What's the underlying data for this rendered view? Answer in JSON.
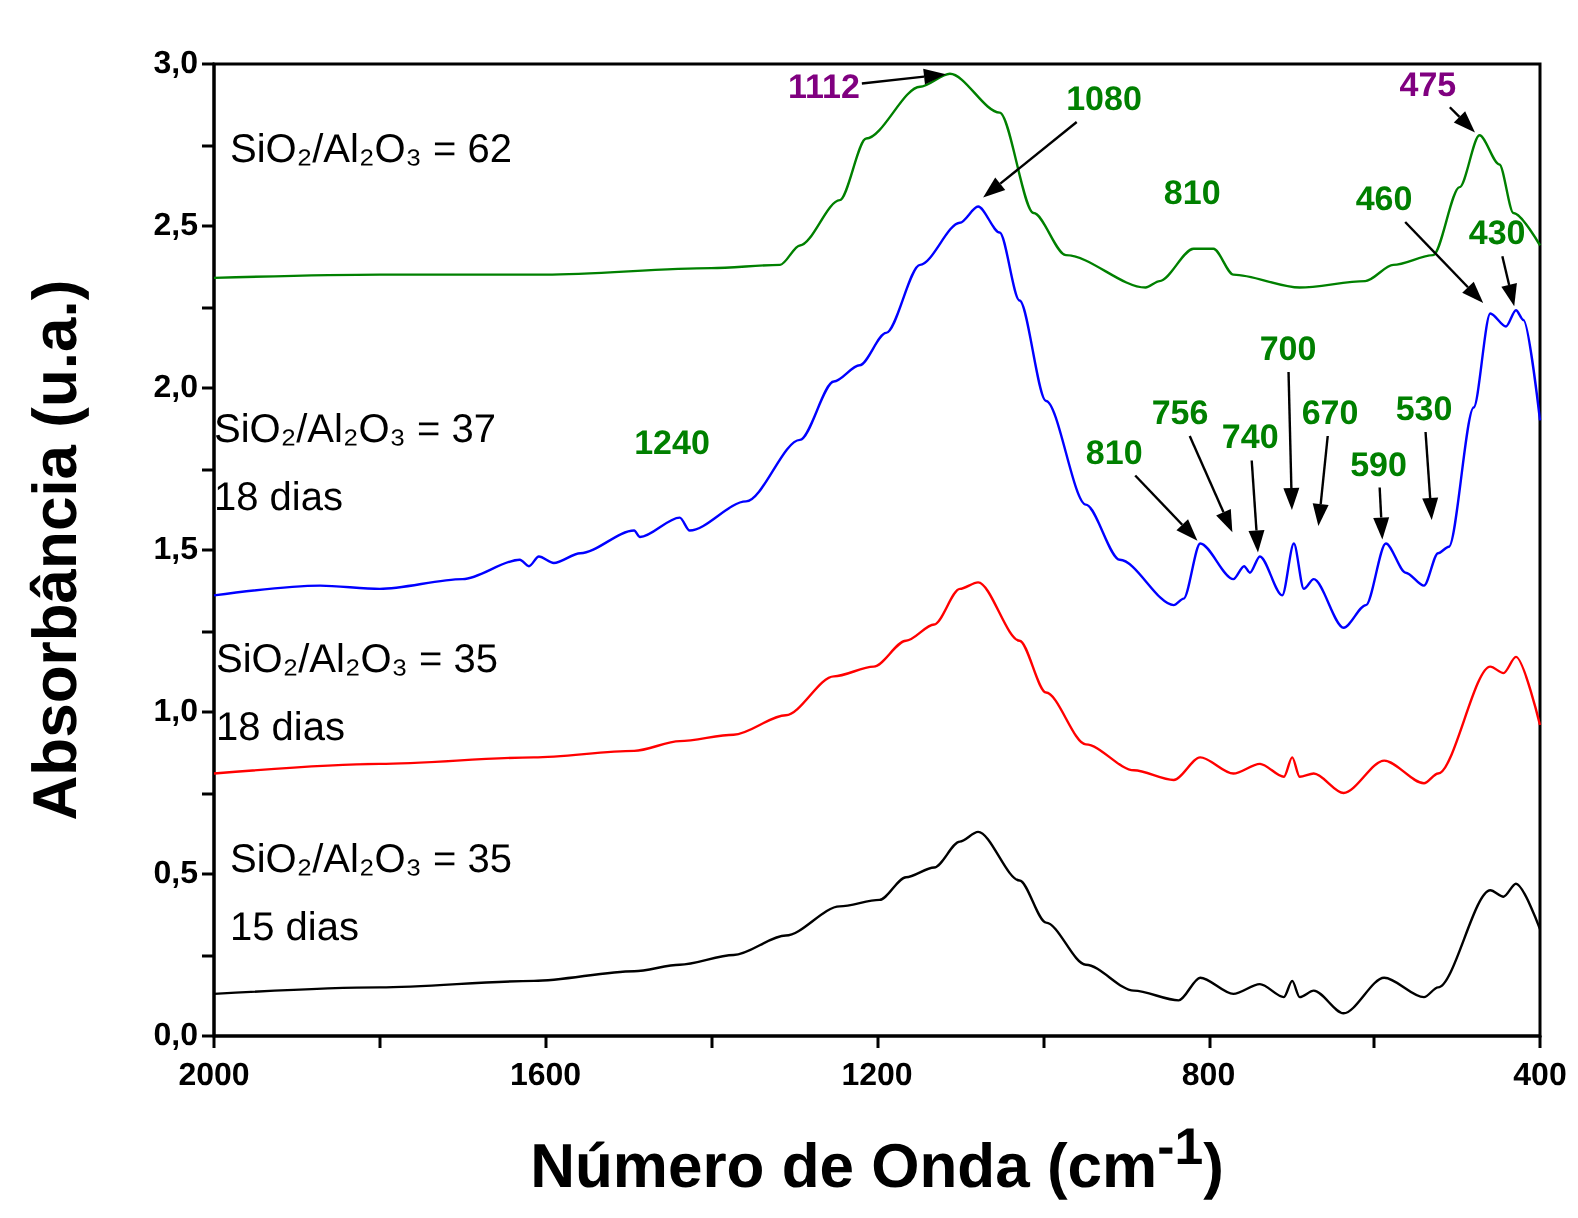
{
  "chart_data": {
    "type": "line",
    "xlabel": "Número de Onda (cm$^{-1}$)",
    "ylabel": "Absorbância (u.a.)",
    "xlim": [
      2000,
      400
    ],
    "xticks": [
      2000,
      1600,
      1200,
      800,
      400
    ],
    "ylim": [
      0,
      3
    ],
    "yticks": [
      {
        "value": 0,
        "label": "0,0"
      },
      {
        "value": 0.5,
        "label": "0,5"
      },
      {
        "value": 1,
        "label": "1,0"
      },
      {
        "value": 1.5,
        "label": "1,5"
      },
      {
        "value": 2,
        "label": "2,0"
      },
      {
        "value": 2.5,
        "label": "2,5"
      },
      {
        "value": 3,
        "label": "3,0"
      }
    ],
    "grid": false,
    "legend": false,
    "marker": "none",
    "line_style": "solid",
    "series": [
      {
        "name": "SiO₂/Al₂O₃ = 62",
        "color": "#008000",
        "x": [
          2000,
          1800,
          1600,
          1400,
          1317,
          1293,
          1245,
          1213,
          1148,
          1112,
          1052,
          1011,
          972,
          876,
          859,
          818,
          794,
          770,
          690,
          611,
          577,
          529,
          497,
          473,
          449,
          432,
          400
        ],
        "values": [
          2.34,
          2.35,
          2.35,
          2.37,
          2.38,
          2.44,
          2.58,
          2.77,
          2.93,
          2.97,
          2.85,
          2.54,
          2.41,
          2.31,
          2.33,
          2.43,
          2.43,
          2.35,
          2.31,
          2.33,
          2.38,
          2.41,
          2.62,
          2.78,
          2.69,
          2.54,
          2.44
        ]
      },
      {
        "name": "SiO₂/Al₂O₃ = 37\n18 dias",
        "color": "#0000ff",
        "x": [
          2000,
          1872,
          1800,
          1700,
          1631,
          1620,
          1608,
          1590,
          1558,
          1493,
          1486,
          1438,
          1426,
          1358,
          1293,
          1252,
          1221,
          1189,
          1148,
          1100,
          1078,
          1052,
          1028,
          996,
          948,
          907,
          842,
          830,
          810,
          770,
          757,
          750,
          738,
          711,
          697,
          685,
          673,
          637,
          610,
          586,
          562,
          540,
          523,
          510,
          480,
          460,
          441,
          429,
          420,
          400
        ],
        "values": [
          1.36,
          1.39,
          1.38,
          1.41,
          1.47,
          1.45,
          1.48,
          1.46,
          1.49,
          1.56,
          1.54,
          1.6,
          1.56,
          1.65,
          1.84,
          2.02,
          2.07,
          2.17,
          2.38,
          2.51,
          2.56,
          2.48,
          2.27,
          1.96,
          1.64,
          1.47,
          1.33,
          1.35,
          1.52,
          1.41,
          1.45,
          1.43,
          1.48,
          1.36,
          1.52,
          1.38,
          1.41,
          1.26,
          1.33,
          1.52,
          1.43,
          1.39,
          1.49,
          1.51,
          1.94,
          2.23,
          2.19,
          2.24,
          2.21,
          1.9
        ]
      },
      {
        "name": "SiO₂/Al₂O₃ = 35\n18 dias",
        "color": "#ff0000",
        "x": [
          2000,
          1800,
          1614,
          1493,
          1438,
          1373,
          1310,
          1252,
          1204,
          1165,
          1131,
          1100,
          1078,
          1028,
          996,
          948,
          890,
          842,
          810,
          770,
          738,
          709,
          699,
          690,
          673,
          637,
          588,
          540,
          523,
          460,
          444,
          429,
          400
        ],
        "values": [
          0.81,
          0.84,
          0.86,
          0.88,
          0.91,
          0.93,
          0.99,
          1.11,
          1.14,
          1.22,
          1.27,
          1.38,
          1.4,
          1.22,
          1.06,
          0.9,
          0.82,
          0.79,
          0.86,
          0.81,
          0.84,
          0.8,
          0.86,
          0.8,
          0.81,
          0.75,
          0.85,
          0.78,
          0.81,
          1.14,
          1.12,
          1.17,
          0.96
        ]
      },
      {
        "name": "SiO₂/Al₂O₃ = 35\n15 dias",
        "color": "#000000",
        "x": [
          2000,
          1800,
          1614,
          1493,
          1438,
          1373,
          1310,
          1245,
          1197,
          1165,
          1131,
          1100,
          1078,
          1028,
          996,
          948,
          890,
          836,
          810,
          770,
          738,
          709,
          699,
          690,
          673,
          637,
          588,
          540,
          523,
          460,
          444,
          429,
          400
        ],
        "values": [
          0.13,
          0.15,
          0.17,
          0.2,
          0.22,
          0.25,
          0.31,
          0.4,
          0.42,
          0.49,
          0.52,
          0.6,
          0.63,
          0.48,
          0.35,
          0.22,
          0.14,
          0.11,
          0.18,
          0.13,
          0.16,
          0.12,
          0.17,
          0.12,
          0.14,
          0.07,
          0.18,
          0.12,
          0.15,
          0.45,
          0.43,
          0.47,
          0.33
        ]
      }
    ],
    "annotations": [
      {
        "text": "1112",
        "x": 1112,
        "y": 2.97
      },
      "1080",
      {
        "text": "810",
        "x": 810,
        "y": 2.43
      },
      "460",
      {
        "text": "430",
        "x": 430,
        "y": 2.24
      },
      {
        "text": "475",
        "x": 475,
        "y": 2.78
      },
      "1240",
      {
        "text": "810",
        "x": 810,
        "y": 1.52
      },
      "756",
      {
        "text": "740",
        "x": 740,
        "y": 1.48
      },
      "700",
      "670",
      {
        "text": "590",
        "x": 590,
        "y": 1.52
      },
      "530"
    ]
  }
}
